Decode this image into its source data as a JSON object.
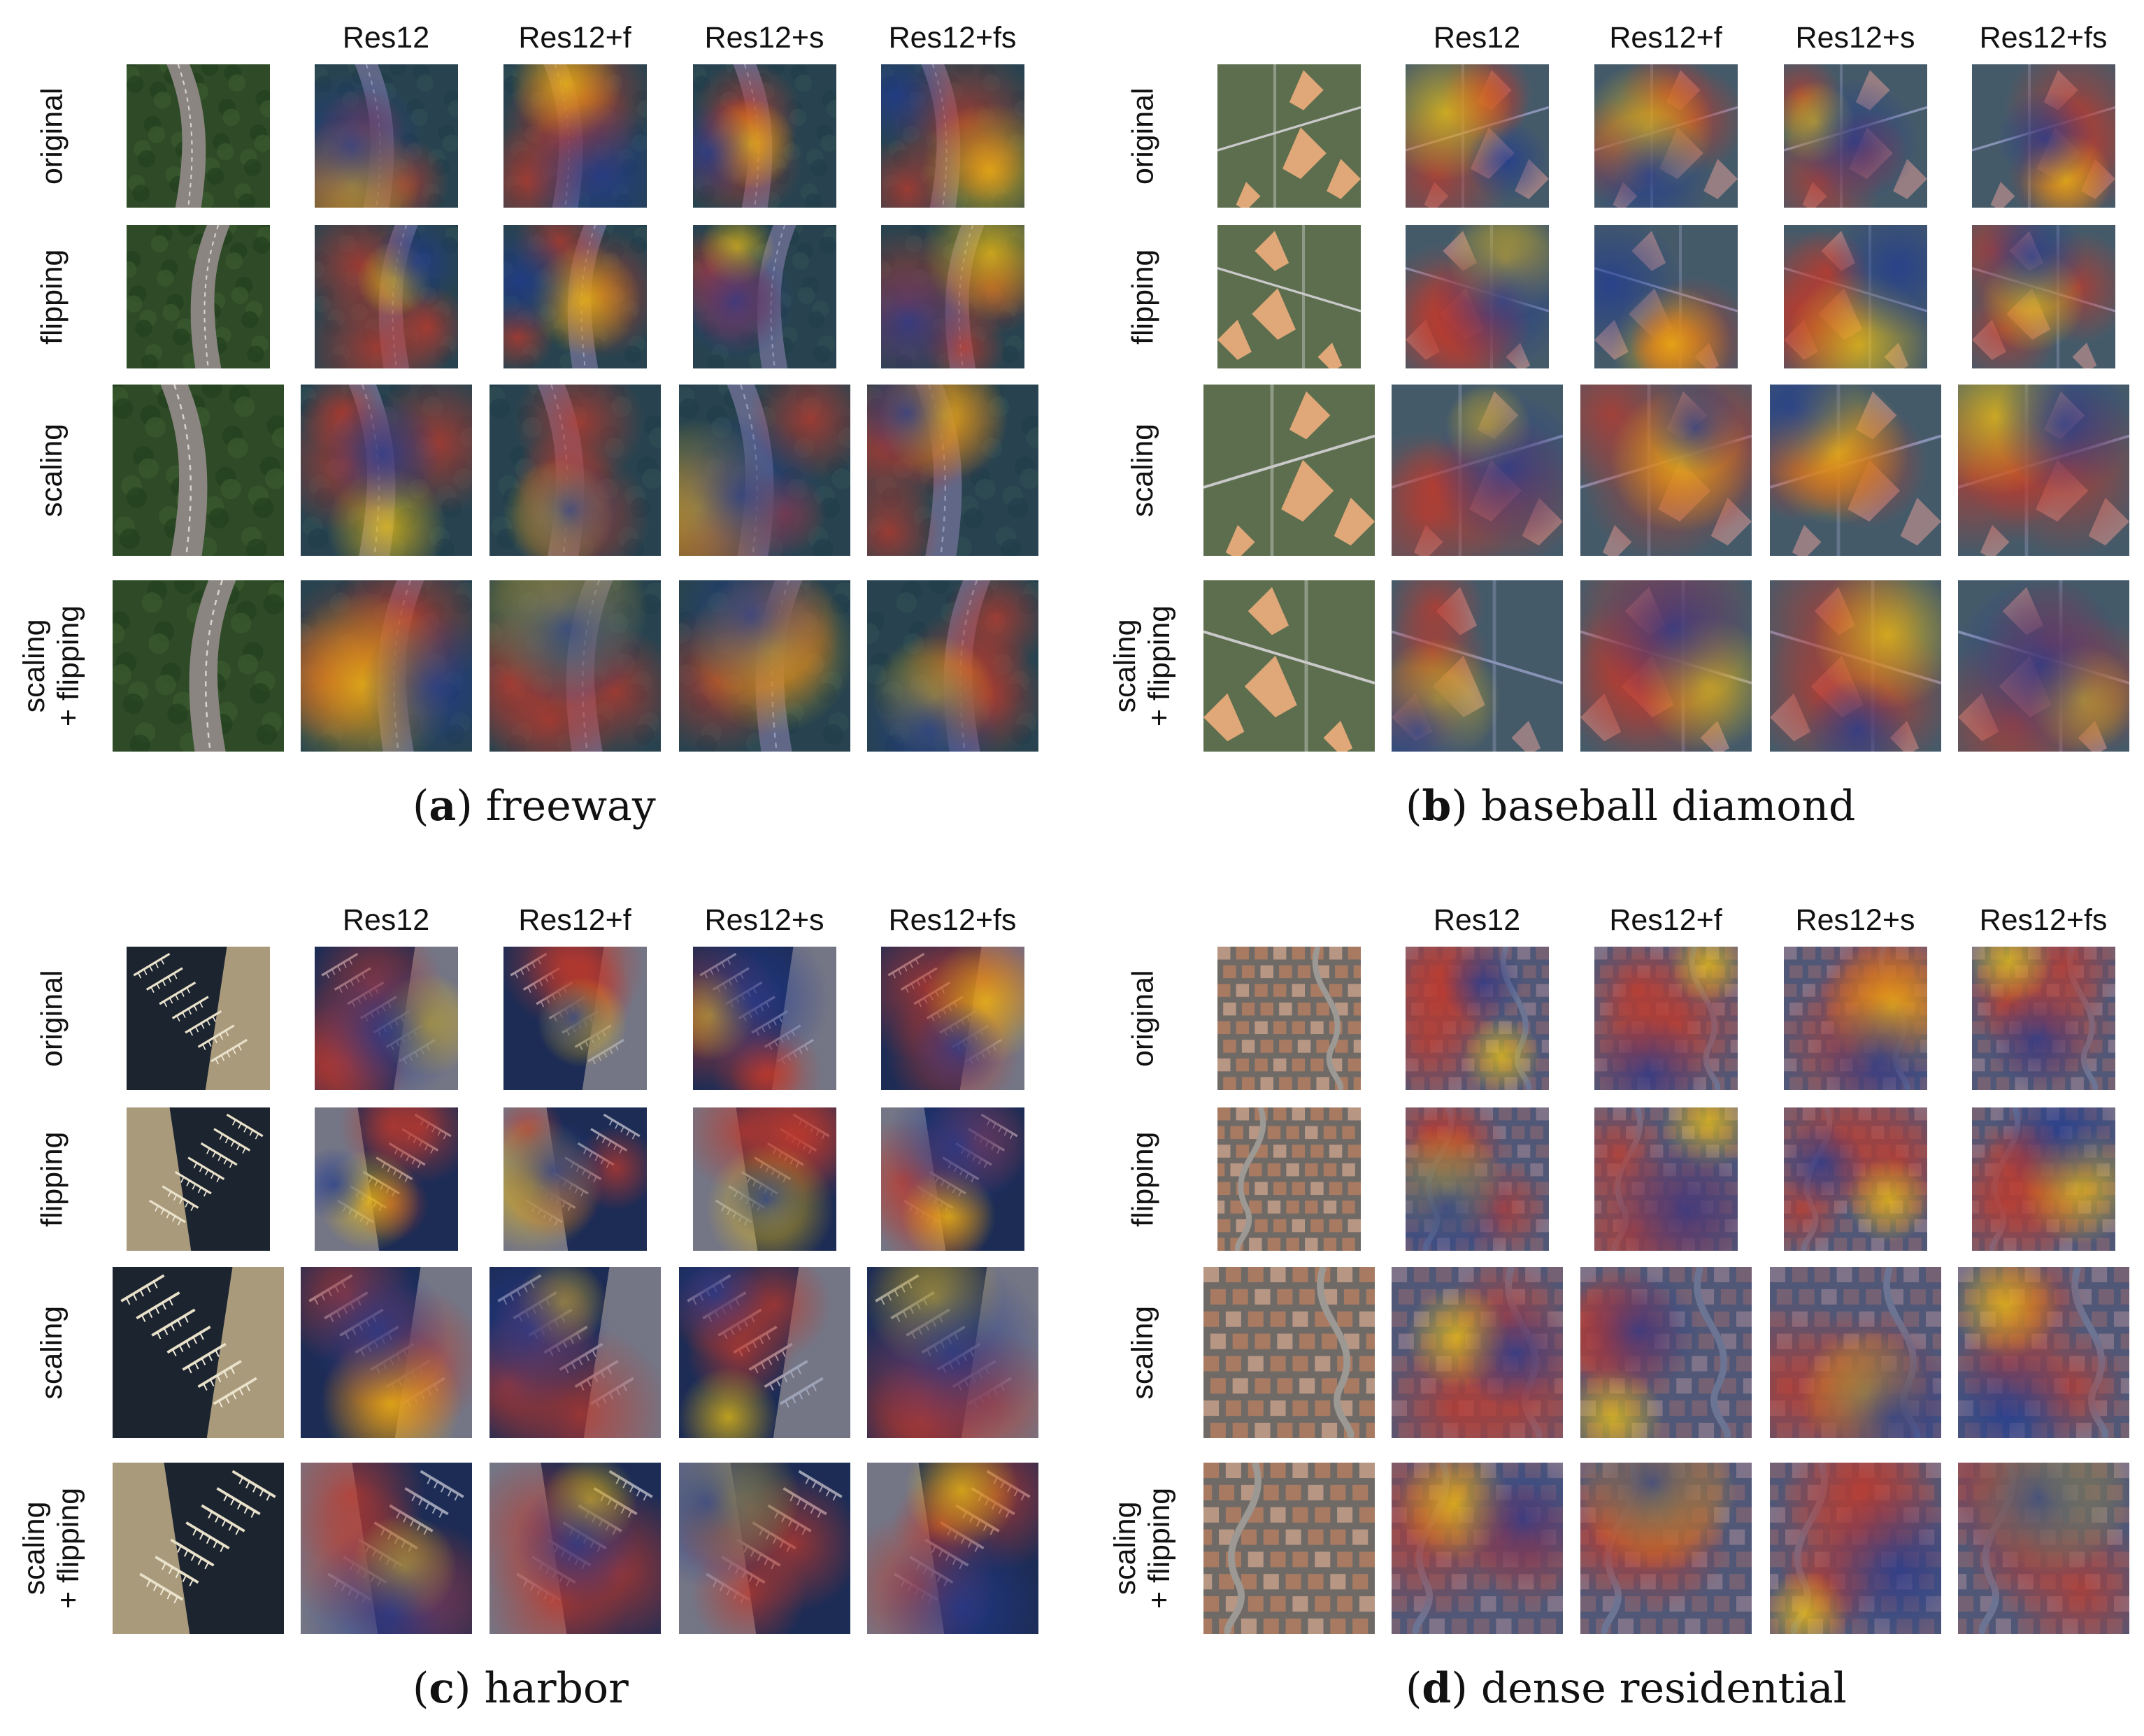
{
  "columns": [
    "Res12",
    "Res12+f",
    "Res12+s",
    "Res12+fs"
  ],
  "rows": [
    {
      "label": [
        "original"
      ]
    },
    {
      "label": [
        "flipping"
      ]
    },
    {
      "label": [
        "scaling"
      ]
    },
    {
      "label": [
        "scaling",
        "+ flipping"
      ]
    }
  ],
  "panels": [
    {
      "letter": "a",
      "name": "freeway",
      "scene": "freeway"
    },
    {
      "letter": "b",
      "name": "baseball diamond",
      "scene": "baseball"
    },
    {
      "letter": "c",
      "name": "harbor",
      "scene": "harbor"
    },
    {
      "letter": "d",
      "name": "dense residential",
      "scene": "residential"
    }
  ],
  "colors": {
    "heat_red": "#c0392b",
    "heat_yellow": "#f1c40f",
    "heat_blue": "#1f3a93",
    "forest": "#2e4a26",
    "road": "#8a8580",
    "water": "#1c2430",
    "roof": "#a87a62",
    "grass": "#56684a",
    "dirt": "#e0a878"
  }
}
